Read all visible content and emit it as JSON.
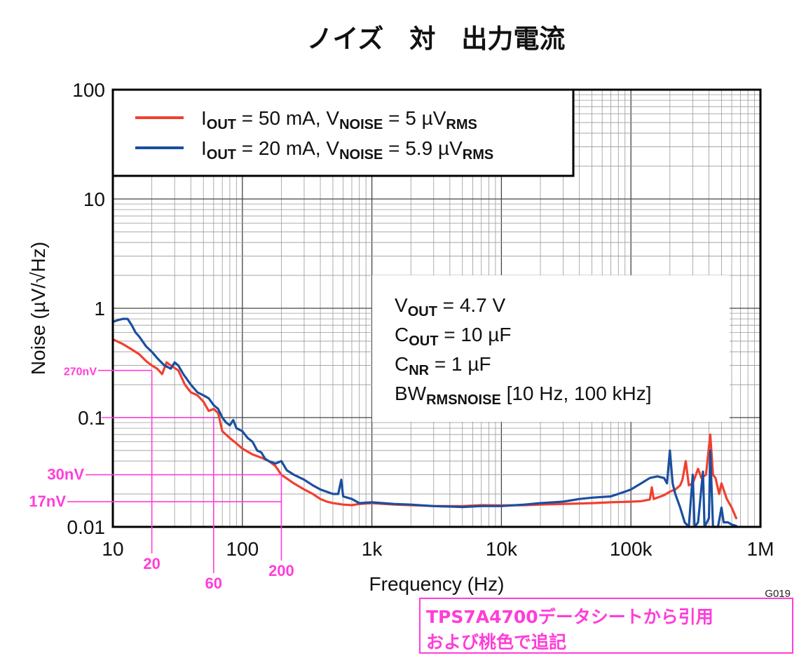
{
  "chart_data": {
    "type": "line",
    "title": "ノイズ　対　出力電流",
    "xlabel": "Frequency (Hz)",
    "ylabel": "Noise (µV/√Hz)",
    "x_scale": "log",
    "y_scale": "log",
    "xlim": [
      10,
      1000000
    ],
    "ylim": [
      0.01,
      100
    ],
    "grid": true,
    "legend_position": "top-left",
    "figure_code": "G019",
    "x_ticks": [
      {
        "value": 10,
        "label": "10"
      },
      {
        "value": 100,
        "label": "100"
      },
      {
        "value": 1000,
        "label": "1k"
      },
      {
        "value": 10000,
        "label": "10k"
      },
      {
        "value": 100000,
        "label": "100k"
      },
      {
        "value": 1000000,
        "label": "1M"
      }
    ],
    "y_ticks": [
      {
        "value": 0.01,
        "label": "0.01"
      },
      {
        "value": 0.1,
        "label": "0.1"
      },
      {
        "value": 1,
        "label": "1"
      },
      {
        "value": 10,
        "label": "10"
      },
      {
        "value": 100,
        "label": "100"
      }
    ],
    "legend": [
      {
        "parts": [
          [
            "I",
            ""
          ],
          [
            "OUT",
            "sub"
          ],
          [
            " = 50 mA, V",
            ""
          ],
          [
            "NOISE",
            "sub"
          ],
          [
            " = 5 µV",
            ""
          ],
          [
            "RMS",
            "sub"
          ]
        ],
        "color": "#f04030"
      },
      {
        "parts": [
          [
            "I",
            ""
          ],
          [
            "OUT",
            "sub"
          ],
          [
            " = 20 mA, V",
            ""
          ],
          [
            "NOISE",
            "sub"
          ],
          [
            " = 5.9 µV",
            ""
          ],
          [
            "RMS",
            "sub"
          ]
        ],
        "color": "#1a4fa0"
      }
    ],
    "conditions": [
      [
        [
          "V",
          ""
        ],
        [
          "OUT",
          "sub"
        ],
        [
          " = 4.7 V",
          ""
        ]
      ],
      [
        [
          "C",
          ""
        ],
        [
          "OUT",
          "sub"
        ],
        [
          " = 10 µF",
          ""
        ]
      ],
      [
        [
          "C",
          ""
        ],
        [
          "NR",
          "sub"
        ],
        [
          " = 1 µF",
          ""
        ]
      ],
      [
        [
          "BW",
          ""
        ],
        [
          "RMSNOISE",
          "sub"
        ],
        [
          " [10 Hz, 100 kHz]",
          ""
        ]
      ]
    ],
    "series": [
      {
        "name": "IOUT = 50 mA, VNOISE = 5 µVRMS",
        "color": "#f04030",
        "points": [
          [
            10,
            0.52
          ],
          [
            12,
            0.47
          ],
          [
            14,
            0.42
          ],
          [
            16,
            0.38
          ],
          [
            18,
            0.33
          ],
          [
            20,
            0.3
          ],
          [
            22,
            0.28
          ],
          [
            24,
            0.25
          ],
          [
            26,
            0.32
          ],
          [
            28,
            0.3
          ],
          [
            32,
            0.27
          ],
          [
            36,
            0.2
          ],
          [
            40,
            0.17
          ],
          [
            45,
            0.16
          ],
          [
            50,
            0.14
          ],
          [
            55,
            0.115
          ],
          [
            60,
            0.12
          ],
          [
            65,
            0.11
          ],
          [
            70,
            0.075
          ],
          [
            80,
            0.065
          ],
          [
            90,
            0.058
          ],
          [
            100,
            0.052
          ],
          [
            120,
            0.046
          ],
          [
            140,
            0.043
          ],
          [
            160,
            0.04
          ],
          [
            180,
            0.036
          ],
          [
            200,
            0.03
          ],
          [
            250,
            0.025
          ],
          [
            300,
            0.022
          ],
          [
            350,
            0.02
          ],
          [
            400,
            0.018
          ],
          [
            450,
            0.017
          ],
          [
            500,
            0.0165
          ],
          [
            600,
            0.016
          ],
          [
            700,
            0.0158
          ],
          [
            800,
            0.0162
          ],
          [
            1000,
            0.0165
          ],
          [
            1500,
            0.016
          ],
          [
            2000,
            0.0158
          ],
          [
            3000,
            0.0155
          ],
          [
            5000,
            0.0155
          ],
          [
            7000,
            0.0158
          ],
          [
            10000,
            0.0157
          ],
          [
            15000,
            0.0158
          ],
          [
            20000,
            0.016
          ],
          [
            30000,
            0.0162
          ],
          [
            50000,
            0.0165
          ],
          [
            70000,
            0.0168
          ],
          [
            100000,
            0.017
          ],
          [
            120000,
            0.0172
          ],
          [
            140000,
            0.0178
          ],
          [
            145000,
            0.023
          ],
          [
            150000,
            0.018
          ],
          [
            180000,
            0.0195
          ],
          [
            200000,
            0.021
          ],
          [
            220000,
            0.022
          ],
          [
            240000,
            0.024
          ],
          [
            250000,
            0.027
          ],
          [
            265000,
            0.04
          ],
          [
            280000,
            0.024
          ],
          [
            300000,
            0.025
          ],
          [
            330000,
            0.034
          ],
          [
            350000,
            0.028
          ],
          [
            380000,
            0.03
          ],
          [
            410000,
            0.07
          ],
          [
            430000,
            0.03
          ],
          [
            450000,
            0.028
          ],
          [
            480000,
            0.02
          ],
          [
            500000,
            0.025
          ],
          [
            550000,
            0.018
          ],
          [
            600000,
            0.015
          ],
          [
            650000,
            0.012
          ]
        ]
      },
      {
        "name": "IOUT = 20 mA, VNOISE = 5.9 µVRMS",
        "color": "#1a4fa0",
        "points": [
          [
            10,
            0.75
          ],
          [
            11,
            0.78
          ],
          [
            12,
            0.8
          ],
          [
            13,
            0.8
          ],
          [
            14,
            0.7
          ],
          [
            15,
            0.6
          ],
          [
            16,
            0.55
          ],
          [
            18,
            0.45
          ],
          [
            20,
            0.4
          ],
          [
            22,
            0.35
          ],
          [
            25,
            0.3
          ],
          [
            28,
            0.28
          ],
          [
            30,
            0.32
          ],
          [
            32,
            0.3
          ],
          [
            35,
            0.25
          ],
          [
            40,
            0.2
          ],
          [
            45,
            0.17
          ],
          [
            50,
            0.16
          ],
          [
            55,
            0.15
          ],
          [
            60,
            0.13
          ],
          [
            65,
            0.12
          ],
          [
            70,
            0.1
          ],
          [
            75,
            0.09
          ],
          [
            80,
            0.085
          ],
          [
            85,
            0.095
          ],
          [
            90,
            0.08
          ],
          [
            100,
            0.075
          ],
          [
            110,
            0.065
          ],
          [
            120,
            0.06
          ],
          [
            130,
            0.05
          ],
          [
            140,
            0.048
          ],
          [
            150,
            0.042
          ],
          [
            160,
            0.04
          ],
          [
            180,
            0.038
          ],
          [
            200,
            0.04
          ],
          [
            220,
            0.033
          ],
          [
            250,
            0.03
          ],
          [
            300,
            0.027
          ],
          [
            350,
            0.024
          ],
          [
            400,
            0.022
          ],
          [
            500,
            0.02
          ],
          [
            550,
            0.02
          ],
          [
            580,
            0.027
          ],
          [
            600,
            0.019
          ],
          [
            700,
            0.018
          ],
          [
            800,
            0.0165
          ],
          [
            1000,
            0.0168
          ],
          [
            1500,
            0.0162
          ],
          [
            2000,
            0.016
          ],
          [
            3000,
            0.0155
          ],
          [
            5000,
            0.0152
          ],
          [
            7000,
            0.0155
          ],
          [
            10000,
            0.0155
          ],
          [
            15000,
            0.016
          ],
          [
            20000,
            0.0165
          ],
          [
            30000,
            0.017
          ],
          [
            40000,
            0.018
          ],
          [
            50000,
            0.0185
          ],
          [
            70000,
            0.019
          ],
          [
            90000,
            0.021
          ],
          [
            100000,
            0.022
          ],
          [
            120000,
            0.025
          ],
          [
            140000,
            0.028
          ],
          [
            160000,
            0.029
          ],
          [
            180000,
            0.028
          ],
          [
            190000,
            0.025
          ],
          [
            200000,
            0.05
          ],
          [
            210000,
            0.025
          ],
          [
            220000,
            0.02
          ],
          [
            240000,
            0.015
          ],
          [
            260000,
            0.011
          ],
          [
            280000,
            0.01
          ],
          [
            300000,
            0.03
          ],
          [
            310000,
            0.01
          ],
          [
            330000,
            0.011
          ],
          [
            360000,
            0.032
          ],
          [
            370000,
            0.01
          ],
          [
            400000,
            0.012
          ],
          [
            410000,
            0.05
          ],
          [
            430000,
            0.01
          ],
          [
            470000,
            0.01
          ],
          [
            500000,
            0.015
          ],
          [
            520000,
            0.011
          ],
          [
            560000,
            0.011
          ],
          [
            600000,
            0.0105
          ],
          [
            650000,
            0.0102
          ]
        ]
      }
    ],
    "annotations": {
      "color": "#ff3dd9",
      "y_markers": [
        {
          "value": 0.27,
          "label": "270nV"
        },
        {
          "value": 0.1,
          "label": ""
        },
        {
          "value": 0.03,
          "label": "30nV"
        },
        {
          "value": 0.017,
          "label": "17nV"
        }
      ],
      "x_markers": [
        {
          "value": 20,
          "label": "20"
        },
        {
          "value": 60,
          "label": "60"
        },
        {
          "value": 200,
          "label": "200"
        }
      ],
      "note_lines": [
        "TPS7A4700データシートから引用",
        "および桃色で追記"
      ]
    }
  }
}
